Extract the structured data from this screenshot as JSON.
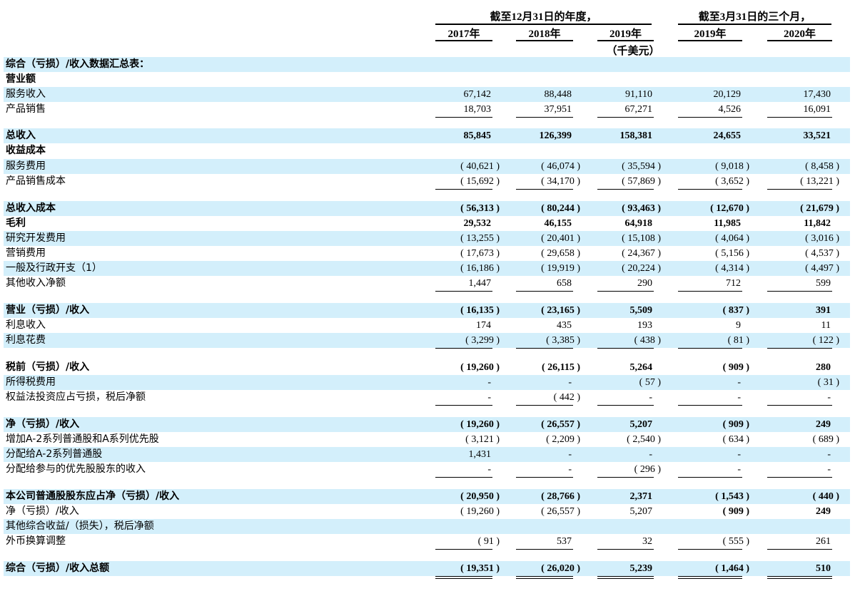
{
  "header": {
    "group_1": "截至12月31日的年度，",
    "group_2": "截至3月31日的三个月，",
    "years": [
      "2017年",
      "2018年",
      "2019年",
      "2019年",
      "2020年"
    ],
    "unit": "（千美元）"
  },
  "table": {
    "rows": [
      {
        "label": "综合（亏损）/收入数据汇总表：",
        "values": []
      },
      {
        "label": "营业额",
        "values": []
      },
      {
        "label": "服务收入",
        "values": [
          "67,142",
          "88,448",
          "91,110",
          "20,129",
          "17,430"
        ]
      },
      {
        "label": "产品销售",
        "values": [
          "18,703",
          "37,951",
          "67,271",
          "4,526",
          "16,091"
        ]
      },
      {
        "label": "总收入",
        "values": [
          "85,845",
          "126,399",
          "158,381",
          "24,655",
          "33,521"
        ]
      },
      {
        "label": "收益成本",
        "values": []
      },
      {
        "label": "服务费用",
        "values": [
          "( 40,621 )",
          "( 46,074 )",
          "( 35,594 )",
          "( 9,018 )",
          "( 8,458 )"
        ]
      },
      {
        "label": "产品销售成本",
        "values": [
          "( 15,692 )",
          "( 34,170 )",
          "( 57,869 )",
          "( 3,652 )",
          "( 13,221 )"
        ]
      },
      {
        "label": "总收入成本",
        "values": [
          "( 56,313 )",
          "( 80,244 )",
          "( 93,463 )",
          "( 12,670 )",
          "( 21,679 )"
        ]
      },
      {
        "label": "毛利",
        "values": [
          "29,532",
          "46,155",
          "64,918",
          "11,985",
          "11,842"
        ]
      },
      {
        "label": "研究开发费用",
        "values": [
          "( 13,255 )",
          "( 20,401 )",
          "( 15,108 )",
          "( 4,064 )",
          "( 3,016 )"
        ]
      },
      {
        "label": "营销费用",
        "values": [
          "( 17,673 )",
          "( 29,658 )",
          "( 24,367 )",
          "( 5,156 )",
          "( 4,537 )"
        ]
      },
      {
        "label": "一般及行政开支（1）",
        "values": [
          "( 16,186 )",
          "( 19,919 )",
          "( 20,224 )",
          "( 4,314 )",
          "( 4,497 )"
        ]
      },
      {
        "label": "其他收入净额",
        "values": [
          "1,447",
          "658",
          "290",
          "712",
          "599"
        ]
      },
      {
        "label": "营业（亏损）/收入",
        "values": [
          "( 16,135 )",
          "( 23,165 )",
          "5,509",
          "( 837 )",
          "391"
        ]
      },
      {
        "label": "利息收入",
        "values": [
          "174",
          "435",
          "193",
          "9",
          "11"
        ]
      },
      {
        "label": "利息花费",
        "values": [
          "( 3,299 )",
          "( 3,385 )",
          "( 438 )",
          "( 81 )",
          "( 122 )"
        ]
      },
      {
        "label": "税前（亏损）/收入",
        "values": [
          "( 19,260 )",
          "( 26,115 )",
          "5,264",
          "( 909 )",
          "280"
        ]
      },
      {
        "label": "所得税费用",
        "values": [
          "-",
          "-",
          "( 57 )",
          "-",
          "( 31 )"
        ]
      },
      {
        "label": "权益法投资应占亏损，税后净额",
        "values": [
          "-",
          "( 442 )",
          "-",
          "-",
          "-"
        ]
      },
      {
        "label": "净（亏损）/收入",
        "values": [
          "( 19,260 )",
          "( 26,557 )",
          "5,207",
          "( 909 )",
          "249"
        ]
      },
      {
        "label": "增加A-2系列普通股和A系列优先股",
        "values": [
          "( 3,121 )",
          "( 2,209 )",
          "( 2,540 )",
          "( 634 )",
          "( 689 )"
        ]
      },
      {
        "label": "分配给A-2系列普通股",
        "values": [
          "1,431",
          "-",
          "-",
          "-",
          "-"
        ]
      },
      {
        "label": "分配给参与的优先股股东的收入",
        "values": [
          "-",
          "-",
          "( 296 )",
          "-",
          "-"
        ]
      },
      {
        "label": "本公司普通股股东应占净（亏损）/收入",
        "values": [
          "( 20,950 )",
          "( 28,766 )",
          "2,371",
          "( 1,543 )",
          "( 440 )"
        ]
      },
      {
        "label": "净（亏损）/收入",
        "values": [
          "( 19,260 )",
          "( 26,557 )",
          "5,207",
          "( 909 )",
          "249"
        ]
      },
      {
        "label": "其他综合收益/（损失），税后净额",
        "values": []
      },
      {
        "label": "外币换算调整",
        "values": [
          "( 91 )",
          "537",
          "32",
          "( 555 )",
          "261"
        ]
      },
      {
        "label": "综合（亏损）/收入总额",
        "values": [
          "( 19,351 )",
          "( 26,020 )",
          "5,239",
          "( 1,464 )",
          "510"
        ]
      }
    ]
  }
}
